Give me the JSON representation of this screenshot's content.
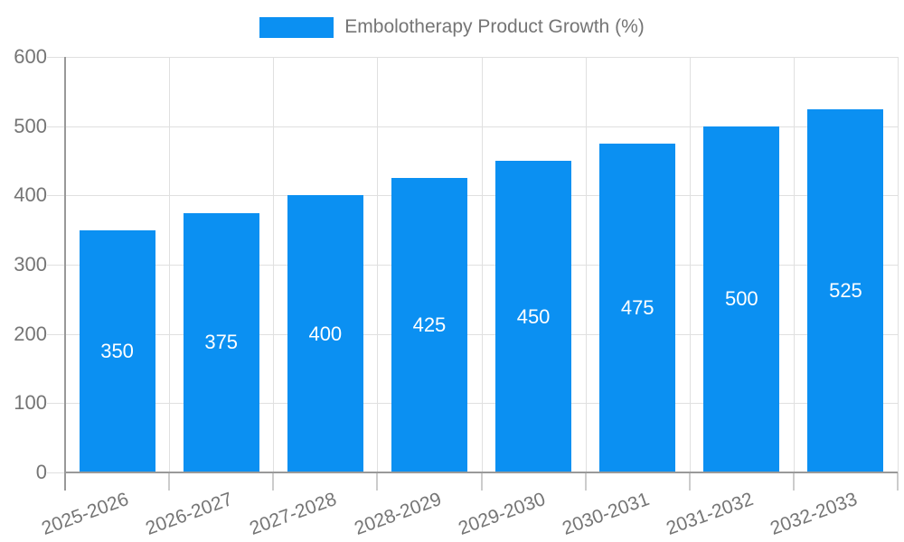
{
  "chart_data": {
    "type": "bar",
    "legend": "Embolotherapy Product Growth (%)",
    "legend_position": "top",
    "categories": [
      "2025-2026",
      "2026-2027",
      "2027-2028",
      "2028-2029",
      "2029-2030",
      "2030-2031",
      "2031-2032",
      "2032-2033"
    ],
    "values": [
      350,
      375,
      400,
      425,
      450,
      475,
      500,
      525
    ],
    "yticks": [
      0,
      100,
      200,
      300,
      400,
      500,
      600
    ],
    "ylim": [
      0,
      600
    ],
    "grid": true,
    "value_label_position": "inside-center",
    "x_label_rotation_deg": -20,
    "colors": {
      "bar": "#0b90f2",
      "value_label": "#ffffff",
      "grid": "#e0e0e0",
      "axis": "#999999",
      "tick": "#cccccc",
      "text": "#757575"
    }
  }
}
